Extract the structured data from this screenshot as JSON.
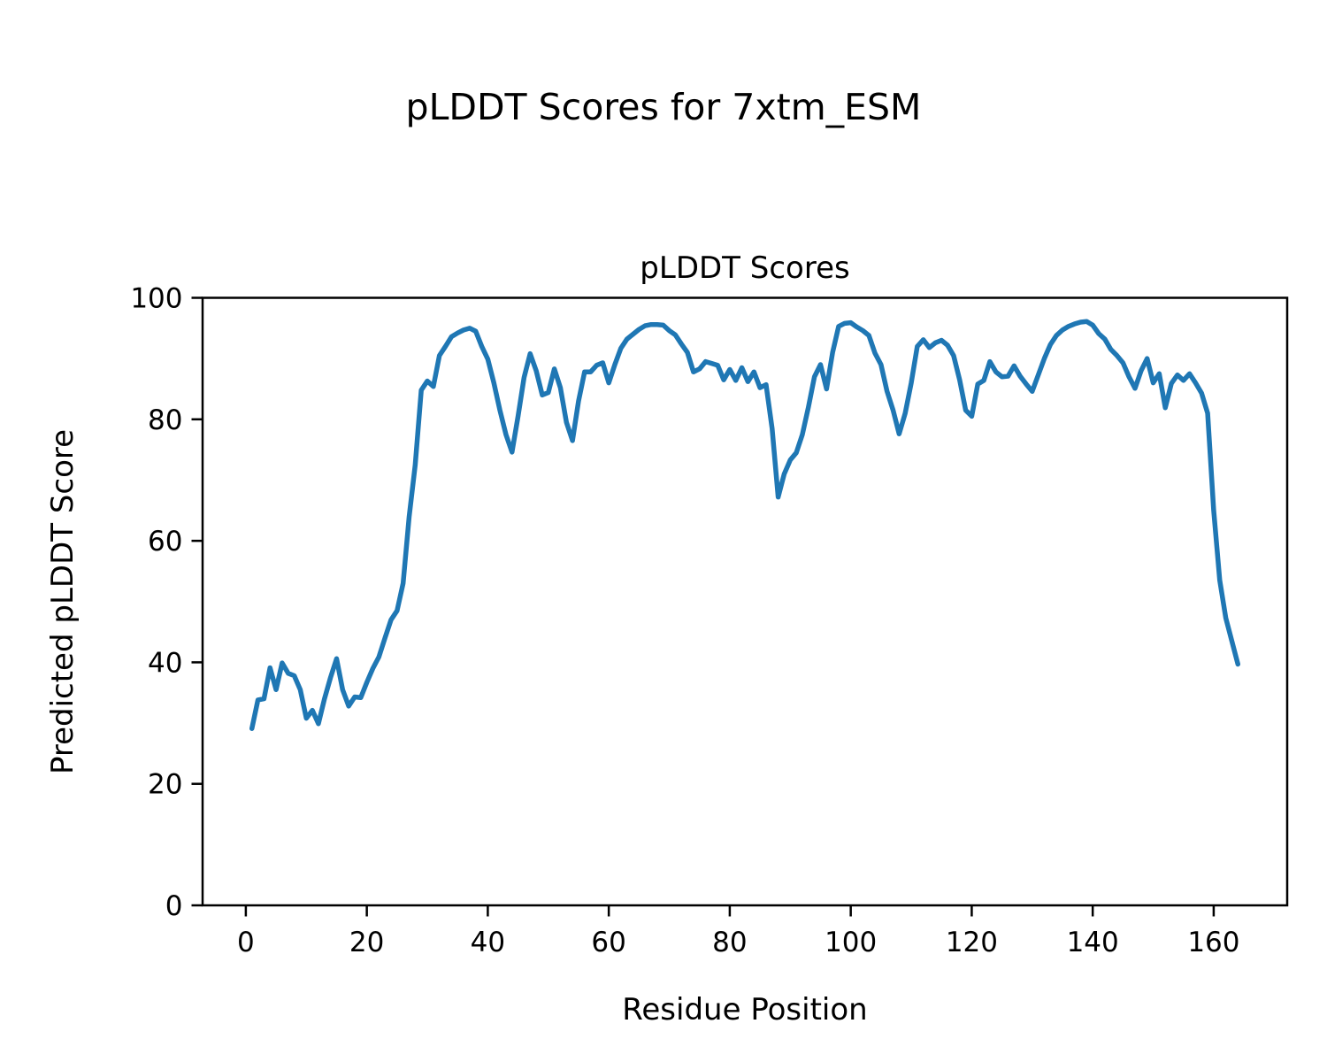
{
  "chart_data": {
    "type": "line",
    "suptitle": "pLDDT Scores for 7xtm_ESM",
    "title": "pLDDT Scores",
    "xlabel": "Residue Position",
    "ylabel": "Predicted pLDDT Score",
    "xlim": [
      -7.15,
      172.15
    ],
    "ylim": [
      0,
      100
    ],
    "xticks": [
      0,
      20,
      40,
      60,
      80,
      100,
      120,
      140,
      160
    ],
    "yticks": [
      0,
      20,
      40,
      60,
      80,
      100
    ],
    "grid": false,
    "legend": "none",
    "line_color": "#1f77b4",
    "axis_color": "#000000",
    "series": [
      {
        "name": "pLDDT",
        "x_start": 1,
        "x_step": 1,
        "values": [
          29.1,
          33.8,
          34.0,
          39.1,
          35.5,
          39.9,
          38.2,
          37.8,
          35.5,
          30.8,
          32.1,
          29.9,
          34.0,
          37.5,
          40.6,
          35.5,
          32.8,
          34.3,
          34.2,
          36.7,
          39.0,
          40.9,
          44.0,
          47.0,
          48.5,
          53.0,
          64.0,
          72.5,
          84.8,
          86.3,
          85.4,
          90.5,
          92.0,
          93.6,
          94.2,
          94.7,
          95.0,
          94.5,
          92.0,
          89.9,
          86.0,
          81.5,
          77.5,
          74.6,
          80.5,
          86.9,
          90.8,
          88.0,
          84.0,
          84.4,
          88.3,
          85.2,
          79.5,
          76.5,
          83.0,
          87.8,
          87.8,
          88.9,
          89.3,
          86.0,
          89.0,
          91.7,
          93.2,
          94.0,
          94.8,
          95.4,
          95.6,
          95.6,
          95.5,
          94.6,
          93.9,
          92.4,
          91.0,
          87.8,
          88.3,
          89.5,
          89.2,
          88.9,
          86.5,
          88.2,
          86.4,
          88.5,
          86.2,
          87.8,
          85.2,
          85.7,
          78.5,
          67.2,
          71.0,
          73.3,
          74.5,
          77.5,
          82.0,
          87.0,
          89.0,
          85.0,
          91.0,
          95.3,
          95.8,
          95.9,
          95.2,
          94.6,
          93.8,
          90.9,
          89.0,
          84.6,
          81.5,
          77.6,
          81.0,
          86.0,
          92.0,
          93.1,
          91.8,
          92.6,
          93.0,
          92.2,
          90.5,
          86.5,
          81.5,
          80.5,
          85.8,
          86.4,
          89.5,
          87.8,
          87.0,
          87.1,
          88.8,
          87.1,
          85.8,
          84.6,
          87.3,
          90.0,
          92.3,
          93.8,
          94.7,
          95.3,
          95.7,
          96.0,
          96.1,
          95.5,
          94.1,
          93.2,
          91.5,
          90.5,
          89.3,
          87.0,
          85.1,
          88.0,
          90.0,
          86.0,
          87.5,
          81.9,
          85.9,
          87.3,
          86.4,
          87.5,
          86.0,
          84.3,
          81.0,
          65.0,
          53.5,
          47.3,
          43.5,
          39.7
        ]
      }
    ]
  }
}
